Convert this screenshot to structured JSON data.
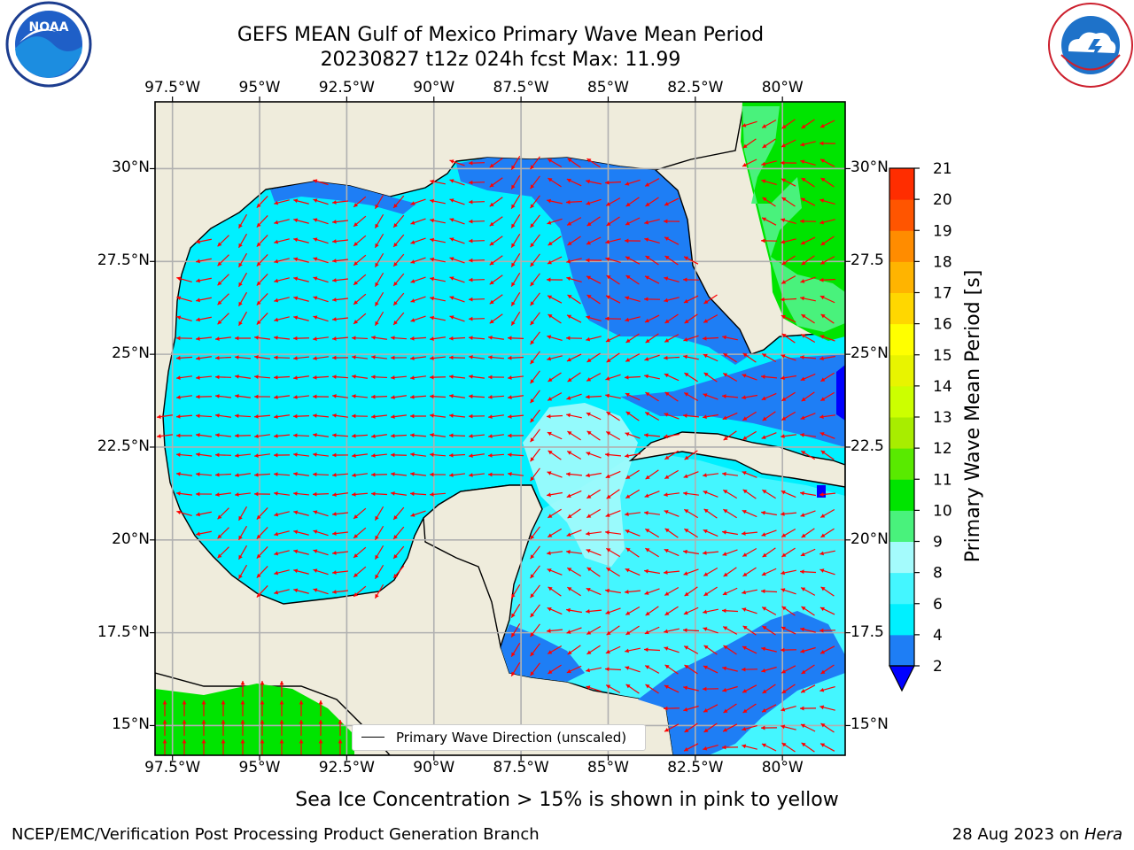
{
  "title": {
    "line1": "GEFS MEAN Gulf of Mexico Primary Wave Mean Period",
    "line2": "20230827 t12z 024h fcst   Max: 11.99"
  },
  "caption": "Sea Ice Concentration > 15% is shown in pink to yellow",
  "footer": {
    "left": "NCEP/EMC/Verification Post Processing Product Generation Branch",
    "right_date": "28 Aug 2023 on ",
    "right_machine": "Hera"
  },
  "legend": {
    "label": "Primary Wave Direction (unscaled)"
  },
  "logos": {
    "left": "NOAA",
    "right": "NATIONAL WEATHER SERVICE"
  },
  "map": {
    "lon_range": [
      -98,
      -78.2
    ],
    "lat_range": [
      14.2,
      31.8
    ],
    "lon_ticks": [
      -97.5,
      -95,
      -92.5,
      -90,
      -87.5,
      -85,
      -82.5,
      -80
    ],
    "lon_labels": [
      "97.5°W",
      "95°W",
      "92.5°W",
      "90°W",
      "87.5°W",
      "85°W",
      "82.5°W",
      "80°W"
    ],
    "lat_ticks": [
      30,
      27.5,
      25,
      22.5,
      20,
      17.5,
      15
    ],
    "lat_labels_left": [
      "30°N",
      "27.5°N",
      "25°N",
      "22.5°N",
      "20°N",
      "17.5°N",
      "15°N"
    ],
    "lat_labels_right": [
      "30°N",
      "27.5",
      "25°N",
      "22.5",
      "20°N",
      "17.5",
      "15°N"
    ],
    "land_color": "#efecdc",
    "arrow_color": "#ff0000"
  },
  "colorbar": {
    "label": "Primary Wave Mean Period [s]",
    "ticks": [
      "2",
      "4",
      "6",
      "8",
      "9",
      "10",
      "11",
      "12",
      "13",
      "14",
      "15",
      "16",
      "17",
      "18",
      "19",
      "20",
      "21"
    ],
    "colors": [
      "#1e7ef5",
      "#00f0ff",
      "#44f6ff",
      "#a4fbfc",
      "#49f27c",
      "#00e400",
      "#59ea00",
      "#a8ed00",
      "#ccff00",
      "#e8f400",
      "#ffff00",
      "#ffd700",
      "#ffb400",
      "#ff8c00",
      "#ff5500",
      "#ff2d00"
    ],
    "under_color": "#0000ff",
    "extend": "min"
  }
}
